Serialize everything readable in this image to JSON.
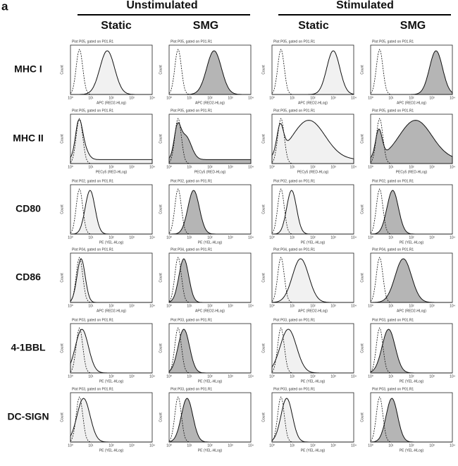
{
  "panel_label": "a",
  "groups": [
    "Unstimulated",
    "Stimulated"
  ],
  "subgroups": [
    "Static",
    "SMG",
    "Static",
    "SMG"
  ],
  "y_label": "Count",
  "x_ticks": [
    "10⁰",
    "10¹",
    "10²",
    "10³",
    "10⁴"
  ],
  "rows": [
    {
      "label": "MHC I",
      "plots": [
        {
          "title": "Plot P05, gated on P01.R1",
          "x_label": "APC (RED2-HLog)"
        },
        {
          "title": "Plot P05, gated on P01.R1",
          "x_label": "APC (RED2-HLog)"
        },
        {
          "title": "Plot P05, gated on P01.R1",
          "x_label": "APC (RED2-HLog)"
        },
        {
          "title": "Plot P05, gated on P01.R1",
          "x_label": "APC (RED2-HLog)"
        }
      ]
    },
    {
      "label": "MHC II",
      "plots": [
        {
          "title": "Plot P05, gated on P01.R1",
          "x_label": "PECy5 (RED-HLog)"
        },
        {
          "title": "Plot P05, gated on P01.R1",
          "x_label": "PECy5 (RED-HLog)"
        },
        {
          "title": "Plot P05, gated on P01.R1",
          "x_label": "PECy5 (RED-HLog)"
        },
        {
          "title": "Plot P05, gated on P01.R1",
          "x_label": "PECy5 (RED-HLog)"
        }
      ]
    },
    {
      "label": "CD80",
      "plots": [
        {
          "title": "Plot P02, gated on P01.R1",
          "x_label": "PE (YEL-HLog)"
        },
        {
          "title": "Plot P02, gated on P01.R1",
          "x_label": "PE (YEL-HLog)"
        },
        {
          "title": "Plot P02, gated on P01.R1",
          "x_label": "PE (YEL-HLog)"
        },
        {
          "title": "Plot P02, gated on P01.R1",
          "x_label": "PE (YEL-HLog)"
        }
      ]
    },
    {
      "label": "CD86",
      "plots": [
        {
          "title": "Plot P04, gated on P01.R1",
          "x_label": "APC (RED2-HLog)"
        },
        {
          "title": "Plot P04, gated on P01.R1",
          "x_label": "APC (RED2-HLog)"
        },
        {
          "title": "Plot P04, gated on P01.R1",
          "x_label": "APC (RED2-HLog)"
        },
        {
          "title": "Plot P04, gated on P01.R1",
          "x_label": "APC (RED2-HLog)"
        }
      ]
    },
    {
      "label": "4-1BBL",
      "plots": [
        {
          "title": "Plot P03, gated on P01.R1",
          "x_label": "PE (YEL-HLog)"
        },
        {
          "title": "Plot P03, gated on P01.R1",
          "x_label": "PE (YEL-HLog)"
        },
        {
          "title": "Plot P03, gated on P01.R1",
          "x_label": "PE (YEL-HLog)"
        },
        {
          "title": "Plot P03, gated on P01.R1",
          "x_label": "PE (YEL-HLog)"
        }
      ]
    },
    {
      "label": "DC-SIGN",
      "plots": [
        {
          "title": "Plot P03, gated on P01.R1",
          "x_label": "PE (YEL-HLog)"
        },
        {
          "title": "Plot P03, gated on P01.R1",
          "x_label": "PE (YEL-HLog)"
        },
        {
          "title": "Plot P03, gated on P01.R1",
          "x_label": "PE (YEL-HLog)"
        },
        {
          "title": "Plot P03, gated on P01.R1",
          "x_label": "PE (YEL-HLog)"
        }
      ]
    }
  ]
}
